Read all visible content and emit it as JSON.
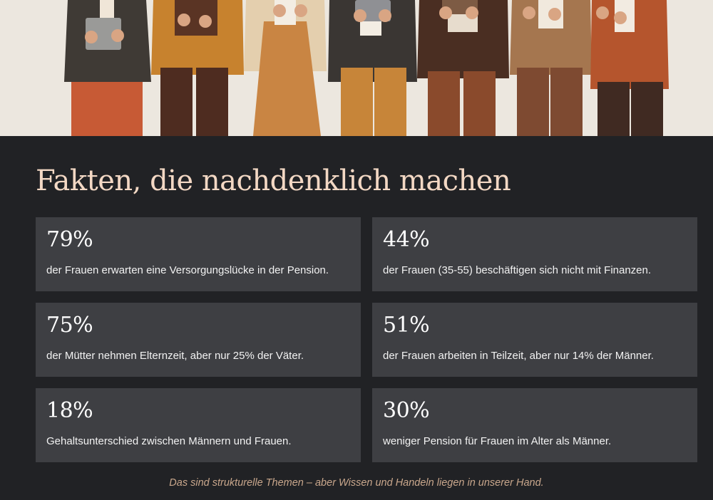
{
  "hero": {
    "image_description_icon": "women-team-illustration-icon"
  },
  "section": {
    "title": "Fakten, die nachdenklich machen",
    "facts": [
      {
        "stat": "79%",
        "text": "der Frauen erwarten eine Versorgungslücke in der Pension."
      },
      {
        "stat": "44%",
        "text": "der Frauen (35-55) beschäftigen sich nicht mit Finanzen."
      },
      {
        "stat": "75%",
        "text": "der Mütter nehmen Elternzeit, aber nur 25% der Väter."
      },
      {
        "stat": "51%",
        "text": "der Frauen arbeiten in Teilzeit, aber nur 14% der Männer."
      },
      {
        "stat": "18%",
        "text": "Gehaltsunterschied zwischen Männern und Frauen."
      },
      {
        "stat": "30%",
        "text": "weniger Pension für Frauen im Alter als Männer."
      }
    ],
    "footer": "Das sind strukturelle Themen – aber Wissen und Handeln liegen in unserer Hand."
  },
  "colors": {
    "background": "#212225",
    "card": "#3e3f43",
    "title": "#f3d8c4",
    "footer": "#c9a78c"
  }
}
